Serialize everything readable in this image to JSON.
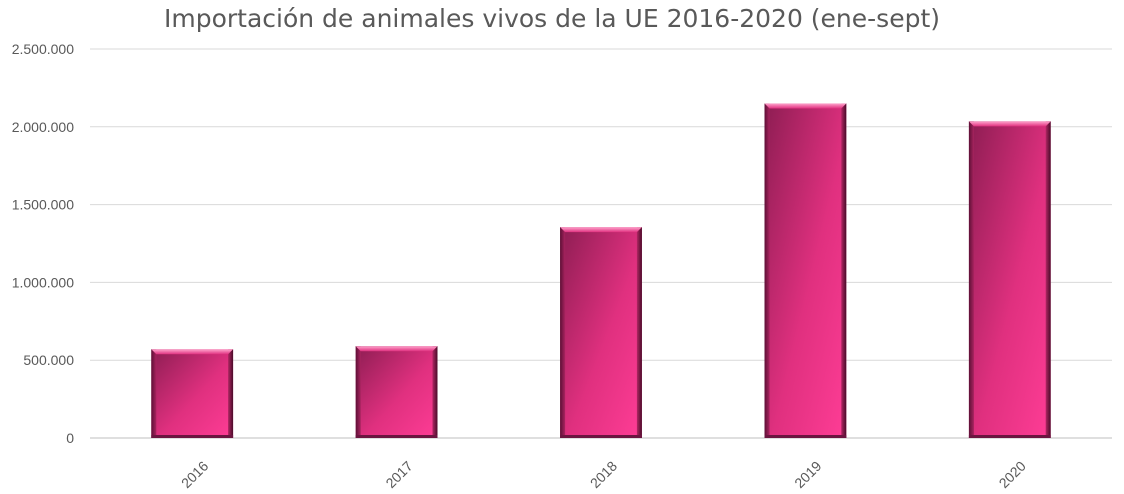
{
  "chart_data": {
    "type": "bar",
    "title": "Importación de animales vivos de la UE  2016-2020 (ene-sept)",
    "xlabel": "",
    "ylabel": "",
    "categories": [
      "2016",
      "2017",
      "2018",
      "2019",
      "2020"
    ],
    "values": [
      570000,
      590000,
      1355000,
      2150000,
      2035000
    ],
    "ylim": [
      0,
      2500000
    ],
    "yticks": [
      0,
      500000,
      1000000,
      1500000,
      2000000,
      2500000
    ],
    "ytick_labels": [
      "0",
      "500.000",
      "1.000.000",
      "1.500.000",
      "2.000.000",
      "2.500.000"
    ],
    "grid": true,
    "legend": "none",
    "colors": {
      "bar_light": "#ff3d96",
      "bar_mid": "#e0307f",
      "bar_dark": "#8c1d52",
      "grid": "#d9d9d9",
      "text": "#595959"
    }
  }
}
